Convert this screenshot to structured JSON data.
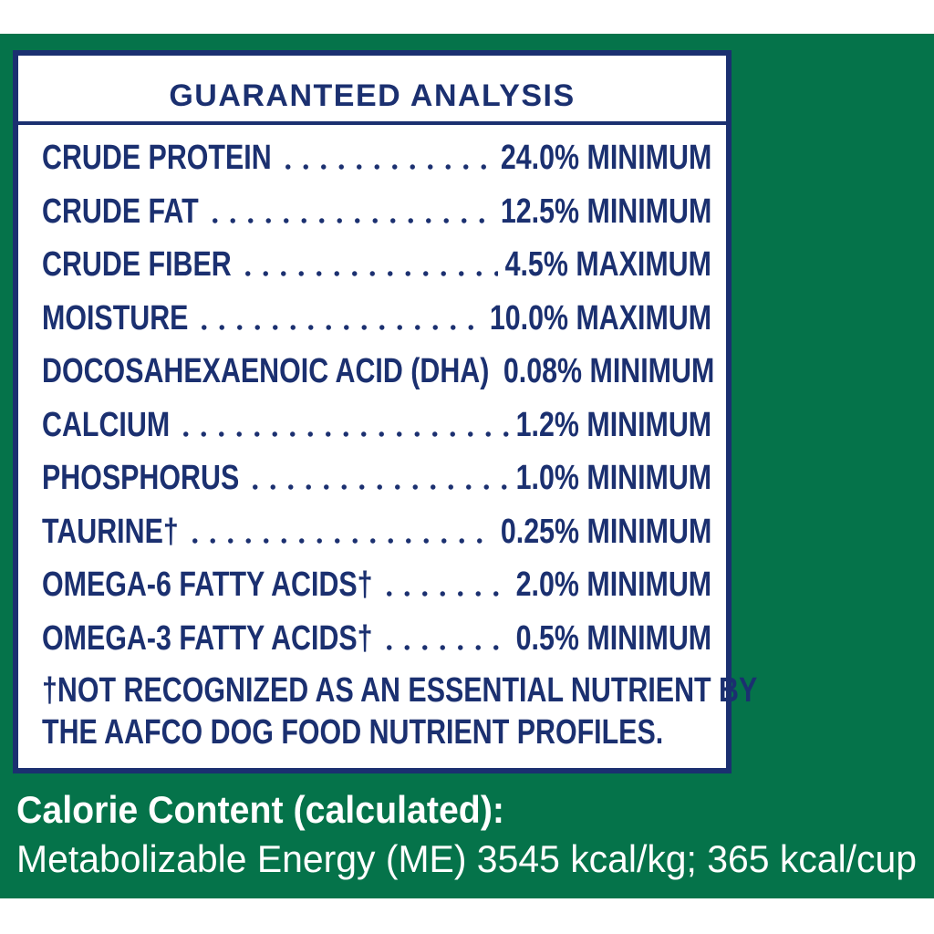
{
  "panel": {
    "title": "GUARANTEED ANALYSIS",
    "rows": [
      [
        "CRUDE PROTEIN",
        "24.0% MINIMUM"
      ],
      [
        "CRUDE FAT",
        "12.5% MINIMUM"
      ],
      [
        "CRUDE FIBER",
        "4.5% MAXIMUM"
      ],
      [
        "MOISTURE",
        "10.0% MAXIMUM"
      ],
      [
        "DOCOSAHEXAENOIC ACID (DHA)",
        "0.08% MINIMUM"
      ],
      [
        "CALCIUM",
        "1.2% MINIMUM"
      ],
      [
        "PHOSPHORUS",
        "1.0% MINIMUM"
      ],
      [
        "TAURINE†",
        "0.25% MINIMUM"
      ],
      [
        "OMEGA-6 FATTY ACIDS†",
        "2.0% MINIMUM"
      ],
      [
        "OMEGA-3 FATTY ACIDS†",
        "0.5% MINIMUM"
      ]
    ],
    "footnote": [
      "†NOT RECOGNIZED AS AN ESSENTIAL NUTRIENT BY",
      "THE  AAFCO DOG FOOD NUTRIENT PROFILES."
    ]
  },
  "calorie": {
    "heading": "Calorie Content (calculated):",
    "text": "Metabolizable Energy (ME) 3545 kcal/kg; 365 kcal/cup"
  }
}
